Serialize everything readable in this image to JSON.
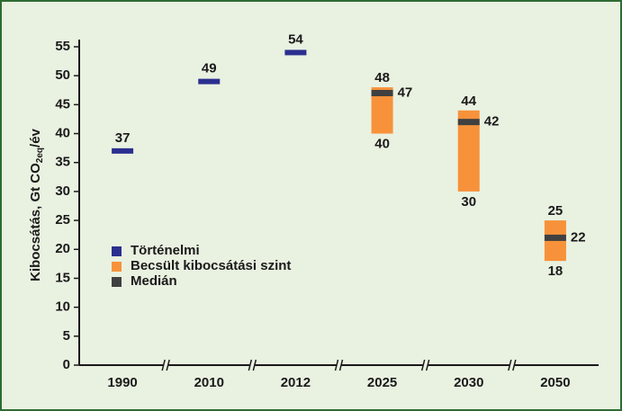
{
  "chart_data": {
    "type": "range",
    "ylabel": "Kibocsátás, Gt CO",
    "ylabel_sub": "2eq",
    "ylabel_end": "/év",
    "categories": [
      "1990",
      "2010",
      "2012",
      "2025",
      "2030",
      "2050"
    ],
    "series": [
      {
        "name": "Történelmi",
        "color": "#2b2f8f",
        "values": [
          37,
          49,
          54,
          null,
          null,
          null
        ]
      },
      {
        "name": "Becsült kibocsátási szint",
        "color": "#f7923a",
        "low": [
          null,
          null,
          null,
          40,
          30,
          18
        ],
        "high": [
          null,
          null,
          null,
          48,
          44,
          25
        ]
      },
      {
        "name": "Medián",
        "color": "#404040",
        "values": [
          null,
          null,
          null,
          47,
          42,
          22
        ]
      }
    ],
    "ylim": [
      0,
      55
    ],
    "yticks": [
      0,
      5,
      10,
      15,
      20,
      25,
      30,
      35,
      40,
      45,
      50,
      55
    ],
    "grid": false
  }
}
